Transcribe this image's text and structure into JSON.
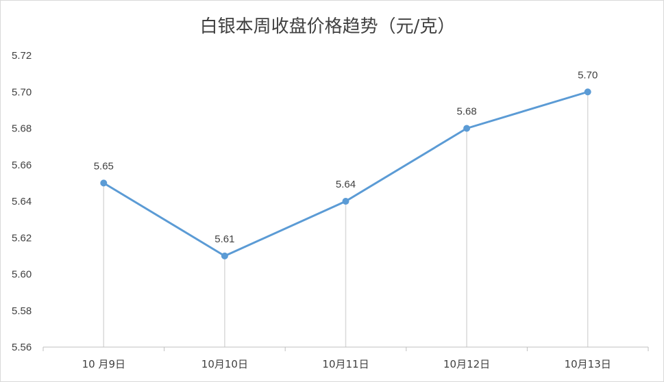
{
  "chart_data": {
    "type": "line",
    "title": "白银本周收盘价格趋势（元/克）",
    "xlabel": "",
    "ylabel": "",
    "categories": [
      "10 月9日",
      "10月10日",
      "10月11日",
      "10月12日",
      "10月13日"
    ],
    "series": [
      {
        "values": [
          5.65,
          5.61,
          5.64,
          5.68,
          5.7
        ]
      }
    ],
    "data_labels": [
      "5.65",
      "5.61",
      "5.64",
      "5.68",
      "5.70"
    ],
    "yticks": [
      "5.56",
      "5.58",
      "5.60",
      "5.62",
      "5.64",
      "5.66",
      "5.68",
      "5.70",
      "5.72"
    ],
    "ylim": [
      5.56,
      5.72
    ],
    "grid": false,
    "drop_lines": true,
    "legend": "none",
    "colors": {
      "line": "#5b9bd5",
      "drop_line": "#d9d9d9",
      "axis": "#bfbfbf",
      "text": "#404040"
    }
  }
}
